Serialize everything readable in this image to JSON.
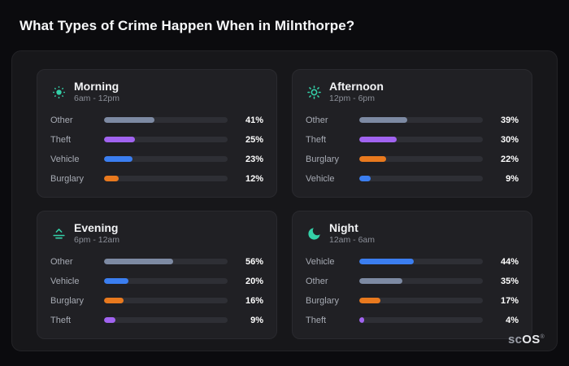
{
  "header": {
    "title": "What Types of Crime Happen When in Milnthorpe?"
  },
  "brand": {
    "part1": "sc",
    "part2": "OS",
    "reg": "®"
  },
  "colors": {
    "accent_icon": "#34d0a8",
    "track": "#2e2f35",
    "categories": {
      "Other": "#7d8aa3",
      "Theft": "#a163f0",
      "Vehicle": "#3b7ef0",
      "Burglary": "#e8791e"
    }
  },
  "chart_data": [
    {
      "type": "bar",
      "title": "Morning",
      "subtitle": "6am - 12pm",
      "icon": "sun-dim-icon",
      "unit": "%",
      "categories": [
        "Other",
        "Theft",
        "Vehicle",
        "Burglary"
      ],
      "values": [
        41,
        25,
        23,
        12
      ],
      "xlim": [
        0,
        100
      ]
    },
    {
      "type": "bar",
      "title": "Afternoon",
      "subtitle": "12pm - 6pm",
      "icon": "sun-icon",
      "unit": "%",
      "categories": [
        "Other",
        "Theft",
        "Burglary",
        "Vehicle"
      ],
      "values": [
        39,
        30,
        22,
        9
      ],
      "xlim": [
        0,
        100
      ]
    },
    {
      "type": "bar",
      "title": "Evening",
      "subtitle": "6pm - 12am",
      "icon": "sunset-icon",
      "unit": "%",
      "categories": [
        "Other",
        "Vehicle",
        "Burglary",
        "Theft"
      ],
      "values": [
        56,
        20,
        16,
        9
      ],
      "xlim": [
        0,
        100
      ]
    },
    {
      "type": "bar",
      "title": "Night",
      "subtitle": "12am - 6am",
      "icon": "moon-icon",
      "unit": "%",
      "categories": [
        "Vehicle",
        "Other",
        "Burglary",
        "Theft"
      ],
      "values": [
        44,
        35,
        17,
        4
      ],
      "xlim": [
        0,
        100
      ]
    }
  ]
}
